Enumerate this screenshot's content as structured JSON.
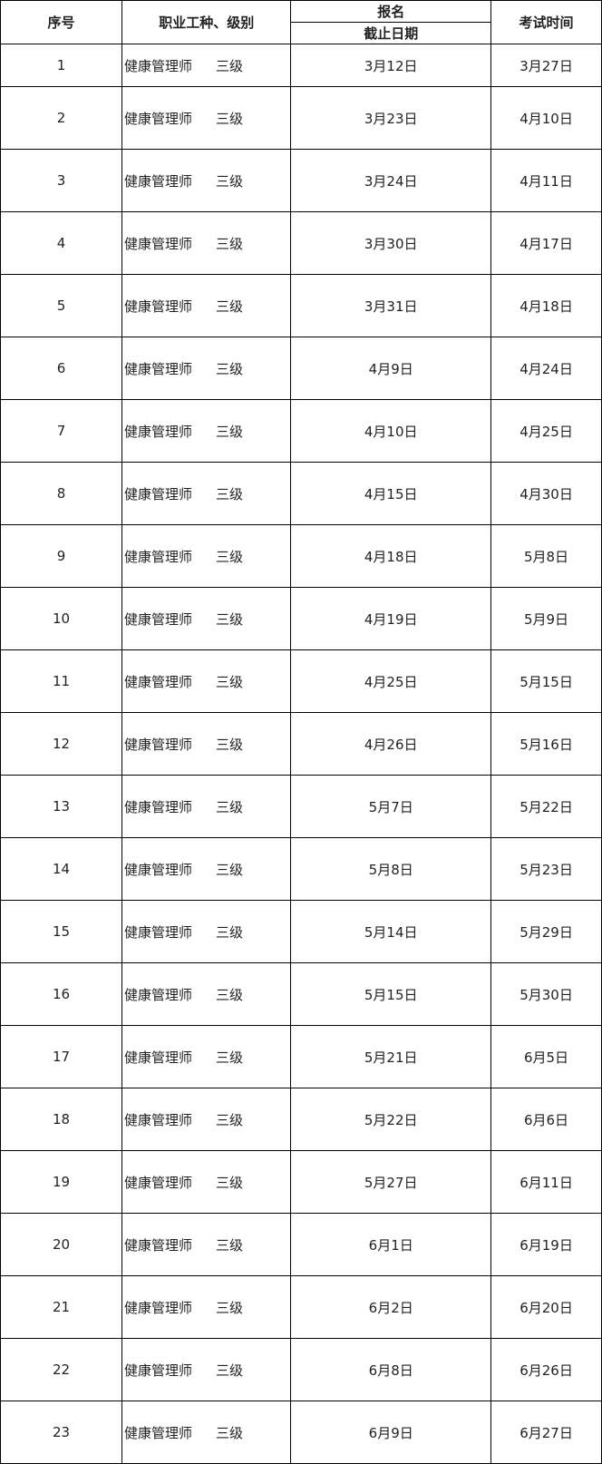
{
  "headers": {
    "index": "序号",
    "job": "职业工种、级别",
    "reg": "报名",
    "deadline": "截止日期",
    "exam": "考试时间"
  },
  "rows": [
    {
      "no": "1",
      "job": "健康管理师",
      "level": "三级",
      "deadline": "3月12日",
      "exam": "3月27日"
    },
    {
      "no": "2",
      "job": "健康管理师",
      "level": "三级",
      "deadline": "3月23日",
      "exam": "4月10日"
    },
    {
      "no": "3",
      "job": "健康管理师",
      "level": "三级",
      "deadline": "3月24日",
      "exam": "4月11日"
    },
    {
      "no": "4",
      "job": "健康管理师",
      "level": "三级",
      "deadline": "3月30日",
      "exam": "4月17日"
    },
    {
      "no": "5",
      "job": "健康管理师",
      "level": "三级",
      "deadline": "3月31日",
      "exam": "4月18日"
    },
    {
      "no": "6",
      "job": "健康管理师",
      "level": "三级",
      "deadline": "4月9日",
      "exam": "4月24日"
    },
    {
      "no": "7",
      "job": "健康管理师",
      "level": "三级",
      "deadline": "4月10日",
      "exam": "4月25日"
    },
    {
      "no": "8",
      "job": "健康管理师",
      "level": "三级",
      "deadline": "4月15日",
      "exam": "4月30日"
    },
    {
      "no": "9",
      "job": "健康管理师",
      "level": "三级",
      "deadline": "4月18日",
      "exam": "5月8日"
    },
    {
      "no": "10",
      "job": "健康管理师",
      "level": "三级",
      "deadline": "4月19日",
      "exam": "5月9日"
    },
    {
      "no": "11",
      "job": "健康管理师",
      "level": "三级",
      "deadline": "4月25日",
      "exam": "5月15日"
    },
    {
      "no": "12",
      "job": "健康管理师",
      "level": "三级",
      "deadline": "4月26日",
      "exam": "5月16日"
    },
    {
      "no": "13",
      "job": "健康管理师",
      "level": "三级",
      "deadline": "5月7日",
      "exam": "5月22日"
    },
    {
      "no": "14",
      "job": "健康管理师",
      "level": "三级",
      "deadline": "5月8日",
      "exam": "5月23日"
    },
    {
      "no": "15",
      "job": "健康管理师",
      "level": "三级",
      "deadline": "5月14日",
      "exam": "5月29日"
    },
    {
      "no": "16",
      "job": "健康管理师",
      "level": "三级",
      "deadline": "5月15日",
      "exam": "5月30日"
    },
    {
      "no": "17",
      "job": "健康管理师",
      "level": "三级",
      "deadline": "5月21日",
      "exam": "6月5日"
    },
    {
      "no": "18",
      "job": "健康管理师",
      "level": "三级",
      "deadline": "5月22日",
      "exam": "6月6日"
    },
    {
      "no": "19",
      "job": "健康管理师",
      "level": "三级",
      "deadline": "5月27日",
      "exam": "6月11日"
    },
    {
      "no": "20",
      "job": "健康管理师",
      "level": "三级",
      "deadline": "6月1日",
      "exam": "6月19日"
    },
    {
      "no": "21",
      "job": "健康管理师",
      "level": "三级",
      "deadline": "6月2日",
      "exam": "6月20日"
    },
    {
      "no": "22",
      "job": "健康管理师",
      "level": "三级",
      "deadline": "6月8日",
      "exam": "6月26日"
    },
    {
      "no": "23",
      "job": "健康管理师",
      "level": "三级",
      "deadline": "6月9日",
      "exam": "6月27日"
    }
  ]
}
